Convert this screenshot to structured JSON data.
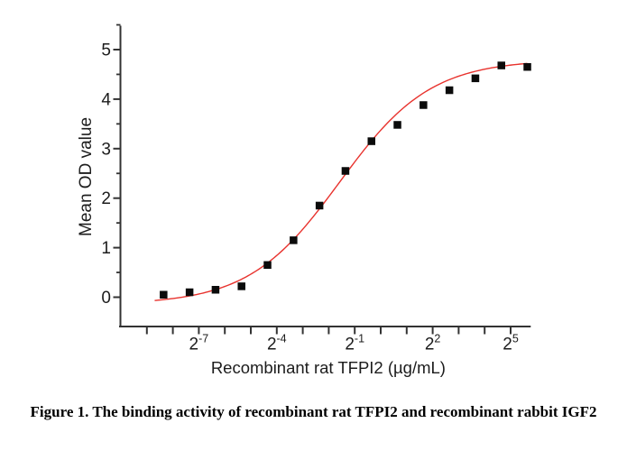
{
  "figure_caption": "Figure 1. The binding activity of recombinant rat TFPI2 and recombinant rabbit IGF2",
  "chart_data": {
    "type": "scatter",
    "title": "",
    "xlabel": "Recombinant rat TFPI2 (µg/mL)",
    "ylabel": "Mean OD value",
    "x_scale": "log2",
    "grid": "off",
    "legend": "none",
    "x_log2_range": [
      -10.05,
      5.77
    ],
    "y_range": [
      -0.59,
      5.48
    ],
    "series": [
      {
        "name": "Mean OD value",
        "marker": "filled-square",
        "x_ug_per_mL": [
          0.00305,
          0.0061,
          0.0122,
          0.0244,
          0.0488,
          0.0977,
          0.1953,
          0.3906,
          0.7813,
          1.5625,
          3.125,
          6.25,
          12.5,
          25,
          50
        ],
        "y_od": [
          0.05,
          0.1,
          0.15,
          0.22,
          0.65,
          1.15,
          1.85,
          2.55,
          3.15,
          3.48,
          3.88,
          4.18,
          4.42,
          4.68,
          4.65
        ]
      }
    ],
    "fit_curve": {
      "model": "4PL logistic on log2(x)",
      "bottom": -0.15,
      "top": 4.8,
      "log2_ec50": -1.58,
      "log2_scale": 1.75,
      "log2_x_start": -8.7,
      "log2_x_end": 5.64
    },
    "x_tick_base": "2",
    "x_labeled_tick_exponents": [
      -7,
      -4,
      -1,
      2,
      5
    ],
    "x_all_tick_exponents": [
      -9,
      -8,
      -7,
      -6,
      -5,
      -4,
      -3,
      -2,
      -1,
      0,
      1,
      2,
      3,
      4,
      5
    ],
    "y_major_ticks": [
      0,
      1,
      2,
      3,
      4,
      5
    ],
    "y_minor_ticks": [
      0.5,
      1.5,
      2.5,
      3.5,
      4.5,
      5.5
    ],
    "colors": {
      "curve": "#e8322d",
      "marker": "#0b0b0b",
      "axis": "#333333",
      "text": "#1c1c1c",
      "background": "#ffffff"
    }
  }
}
